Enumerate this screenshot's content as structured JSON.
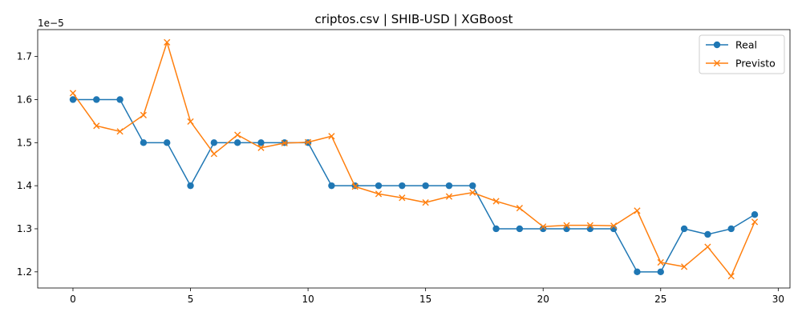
{
  "chart_data": {
    "type": "line",
    "title": "criptos.csv | SHIB-USD | XGBoost",
    "xlabel": "",
    "ylabel": "",
    "y_offset_label": "1e−5",
    "xlim": [
      -1.5,
      30.5
    ],
    "ylim": [
      1.1625,
      1.7625
    ],
    "xticks": [
      0,
      5,
      10,
      15,
      20,
      25,
      30
    ],
    "yticks": [
      1.2,
      1.3,
      1.4,
      1.5,
      1.6,
      1.7
    ],
    "ytick_labels": [
      "1.2",
      "1.3",
      "1.4",
      "1.5",
      "1.6",
      "1.7"
    ],
    "grid": false,
    "legend_position": "top-right",
    "x": [
      0,
      1,
      2,
      3,
      4,
      5,
      6,
      7,
      8,
      9,
      10,
      11,
      12,
      13,
      14,
      15,
      16,
      17,
      18,
      19,
      20,
      21,
      22,
      23,
      24,
      25,
      26,
      27,
      28,
      29
    ],
    "series": [
      {
        "name": "Real",
        "color": "#1f77b4",
        "marker": "circle",
        "values": [
          1.6,
          1.6,
          1.6,
          1.5,
          1.5,
          1.4,
          1.5,
          1.5,
          1.5,
          1.5,
          1.5,
          1.4,
          1.4,
          1.4,
          1.4,
          1.4,
          1.4,
          1.4,
          1.3,
          1.3,
          1.3,
          1.3,
          1.3,
          1.3,
          1.2,
          1.2,
          1.3,
          1.287,
          1.3,
          1.333
        ]
      },
      {
        "name": "Previsto",
        "color": "#ff7f0e",
        "marker": "x",
        "values": [
          1.615,
          1.539,
          1.526,
          1.564,
          1.733,
          1.549,
          1.474,
          1.518,
          1.488,
          1.499,
          1.501,
          1.515,
          1.398,
          1.381,
          1.372,
          1.361,
          1.375,
          1.384,
          1.364,
          1.348,
          1.305,
          1.308,
          1.308,
          1.307,
          1.342,
          1.222,
          1.212,
          1.258,
          1.19,
          1.316
        ]
      }
    ]
  }
}
